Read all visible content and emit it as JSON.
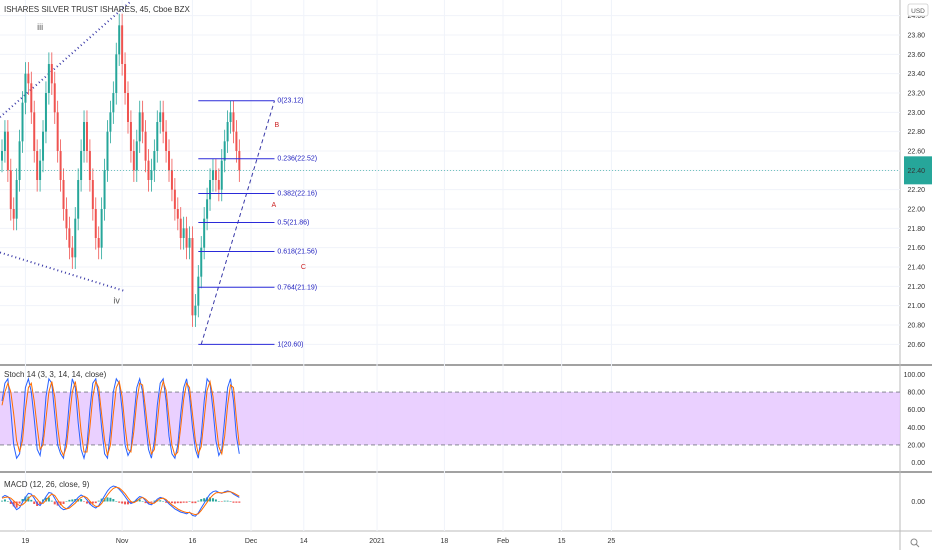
{
  "header": {
    "title": "ISHARES SILVER TRUST ISHARES, 45, Cboe BZX",
    "currency_button": "USD",
    "search_button": "search-icon"
  },
  "chart_data": [
    {
      "type": "candlestick",
      "title": "ISHARES SILVER TRUST ISHARES, 45, Cboe BZX",
      "ylim": [
        20.5,
        24.1
      ],
      "y_ticks": [
        "24.00",
        "23.80",
        "23.60",
        "23.40",
        "23.20",
        "23.00",
        "22.80",
        "22.60",
        "22.40",
        "22.20",
        "22.00",
        "21.80",
        "21.60",
        "21.40",
        "21.20",
        "21.00",
        "20.80",
        "20.60"
      ],
      "y_tick_values": [
        24.0,
        23.8,
        23.6,
        23.4,
        23.2,
        23.0,
        22.8,
        22.6,
        22.4,
        22.2,
        22.0,
        21.8,
        21.6,
        21.4,
        21.2,
        21.0,
        20.8,
        20.6
      ],
      "x_ticks": [
        "19",
        "Nov",
        "16",
        "Dec",
        "14",
        "2021",
        "18",
        "Feb",
        "15",
        "25"
      ],
      "x_tick_index": [
        8,
        41,
        65,
        85,
        103,
        128,
        151,
        171,
        191,
        208
      ],
      "current_price": 22.4,
      "up_color": "#26a69a",
      "down_color": "#ef5350",
      "close": [
        22.6,
        22.8,
        22.4,
        22.0,
        21.9,
        22.3,
        22.7,
        23.1,
        23.4,
        23.3,
        23.0,
        22.6,
        22.3,
        22.5,
        22.8,
        23.2,
        23.5,
        23.3,
        23.0,
        22.6,
        22.3,
        22.0,
        21.8,
        21.6,
        21.5,
        21.9,
        22.3,
        22.6,
        22.9,
        22.6,
        22.3,
        22.0,
        21.7,
        21.6,
        22.0,
        22.4,
        22.8,
        23.0,
        23.2,
        23.6,
        23.9,
        23.5,
        23.2,
        22.9,
        22.6,
        22.4,
        22.7,
        23.0,
        22.8,
        22.5,
        22.3,
        22.4,
        22.6,
        22.9,
        23.0,
        22.8,
        22.6,
        22.4,
        22.2,
        22.0,
        21.9,
        21.7,
        21.8,
        21.6,
        21.7,
        20.9,
        21.0,
        21.3,
        21.6,
        21.9,
        22.1,
        22.3,
        22.4,
        22.3,
        22.2,
        22.5,
        22.7,
        22.9,
        23.0,
        22.8,
        22.6,
        22.4
      ],
      "fib_levels": [
        {
          "label": "0(23.12)",
          "value": 23.12
        },
        {
          "label": "0.236(22.52)",
          "value": 22.52
        },
        {
          "label": "0.382(22.16)",
          "value": 22.16
        },
        {
          "label": "0.5(21.86)",
          "value": 21.86
        },
        {
          "label": "0.618(21.56)",
          "value": 21.56
        },
        {
          "label": "0.764(21.19)",
          "value": 21.19
        },
        {
          "label": "1(20.60)",
          "value": 20.6
        }
      ],
      "wave_labels": [
        {
          "text": "iii",
          "index": 12,
          "value": 23.85
        },
        {
          "text": "iv",
          "index": 38,
          "value": 21.02
        }
      ],
      "abc_labels": [
        {
          "text": "B",
          "index": 93,
          "value": 22.85
        },
        {
          "text": "A",
          "index": 92,
          "value": 22.02
        },
        {
          "text": "C",
          "index": 102,
          "value": 21.38
        }
      ]
    },
    {
      "type": "line",
      "title": "Stoch",
      "legend": "Stoch 14 (3, 3, 14, 14, close)",
      "ylim": [
        -5,
        105
      ],
      "y_ticks": [
        "100.00",
        "80.00",
        "60.00",
        "40.00",
        "20.00",
        "0.00"
      ],
      "y_tick_values": [
        100,
        80,
        60,
        40,
        20,
        0
      ],
      "band": [
        20,
        80
      ],
      "band_color": "#e6c8ff",
      "series": [
        {
          "name": "%K",
          "color": "#2962ff",
          "values": [
            70,
            90,
            95,
            60,
            20,
            5,
            10,
            40,
            85,
            95,
            80,
            50,
            15,
            8,
            30,
            75,
            95,
            90,
            55,
            20,
            10,
            5,
            30,
            70,
            95,
            85,
            45,
            15,
            5,
            20,
            60,
            90,
            95,
            75,
            40,
            10,
            5,
            35,
            80,
            95,
            90,
            60,
            20,
            8,
            15,
            50,
            85,
            95,
            80,
            45,
            15,
            5,
            25,
            65,
            90,
            95,
            70,
            30,
            10,
            5,
            20,
            55,
            85,
            95,
            75,
            40,
            15,
            5,
            30,
            70,
            95,
            90,
            60,
            25,
            8,
            15,
            50,
            85,
            95,
            70,
            30,
            10
          ]
        },
        {
          "name": "%D",
          "color": "#ff6d00",
          "values": [
            65,
            80,
            90,
            80,
            55,
            25,
            12,
            25,
            60,
            85,
            90,
            70,
            40,
            15,
            20,
            50,
            80,
            92,
            75,
            40,
            15,
            8,
            18,
            50,
            80,
            92,
            70,
            35,
            12,
            12,
            40,
            75,
            92,
            85,
            55,
            25,
            8,
            20,
            55,
            85,
            92,
            75,
            40,
            15,
            12,
            35,
            70,
            90,
            88,
            60,
            30,
            10,
            15,
            45,
            78,
            92,
            82,
            50,
            20,
            8,
            12,
            40,
            72,
            90,
            85,
            55,
            25,
            10,
            18,
            50,
            82,
            92,
            75,
            45,
            18,
            10,
            30,
            65,
            88,
            85,
            50,
            20
          ]
        }
      ]
    },
    {
      "type": "bar",
      "title": "MACD",
      "legend": "MACD (12, 26, close, 9)",
      "ylim": [
        -0.6,
        0.6
      ],
      "y_ticks": [
        "0.00"
      ],
      "y_tick_values": [
        0
      ],
      "macd_color": "#2962ff",
      "signal_color": "#ff6d00",
      "hist_up_color": "#26a69a",
      "hist_down_color": "#ef5350",
      "macd": [
        0.1,
        0.15,
        0.12,
        0.02,
        -0.1,
        -0.2,
        -0.15,
        -0.02,
        0.1,
        0.2,
        0.18,
        0.08,
        -0.05,
        -0.1,
        0.0,
        0.12,
        0.22,
        0.2,
        0.08,
        -0.06,
        -0.15,
        -0.2,
        -0.18,
        -0.12,
        -0.05,
        0.02,
        0.1,
        0.16,
        0.12,
        0.04,
        -0.06,
        -0.12,
        -0.16,
        -0.1,
        0.02,
        0.14,
        0.26,
        0.34,
        0.38,
        0.36,
        0.3,
        0.22,
        0.12,
        0.02,
        -0.05,
        -0.02,
        0.06,
        0.12,
        0.1,
        0.02,
        -0.06,
        -0.08,
        -0.02,
        0.06,
        0.1,
        0.08,
        0.02,
        -0.06,
        -0.12,
        -0.18,
        -0.22,
        -0.26,
        -0.28,
        -0.3,
        -0.26,
        -0.34,
        -0.36,
        -0.28,
        -0.16,
        -0.04,
        0.08,
        0.18,
        0.24,
        0.26,
        0.22,
        0.2,
        0.24,
        0.26,
        0.24,
        0.18,
        0.14,
        0.1
      ],
      "signal": [
        0.08,
        0.1,
        0.11,
        0.08,
        0.02,
        -0.05,
        -0.1,
        -0.08,
        -0.02,
        0.08,
        0.14,
        0.14,
        0.06,
        -0.03,
        -0.05,
        0.03,
        0.12,
        0.18,
        0.15,
        0.04,
        -0.06,
        -0.14,
        -0.18,
        -0.16,
        -0.1,
        -0.04,
        0.04,
        0.1,
        0.13,
        0.09,
        0.01,
        -0.07,
        -0.12,
        -0.12,
        -0.05,
        0.06,
        0.16,
        0.25,
        0.32,
        0.35,
        0.33,
        0.27,
        0.19,
        0.09,
        0.0,
        -0.03,
        0.01,
        0.07,
        0.1,
        0.06,
        -0.01,
        -0.05,
        -0.04,
        0.02,
        0.07,
        0.08,
        0.05,
        -0.02,
        -0.08,
        -0.13,
        -0.18,
        -0.22,
        -0.25,
        -0.27,
        -0.27,
        -0.3,
        -0.32,
        -0.3,
        -0.22,
        -0.12,
        -0.02,
        0.08,
        0.16,
        0.21,
        0.22,
        0.21,
        0.22,
        0.24,
        0.24,
        0.21,
        0.17,
        0.13
      ]
    }
  ]
}
